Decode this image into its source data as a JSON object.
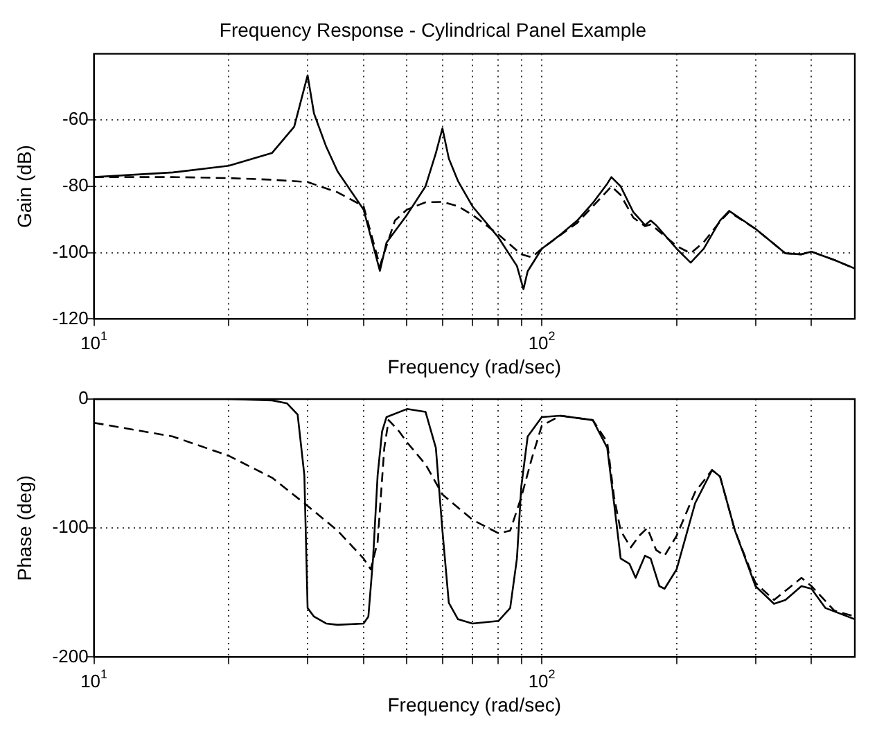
{
  "chart_data": [
    {
      "type": "line",
      "title": "Frequency Response - Cylindrical Panel Example",
      "xlabel": "Frequency (rad/sec)",
      "ylabel": "Gain (dB)",
      "log": "x",
      "grid": true,
      "legend": false,
      "marker": "none",
      "xlim": [
        10,
        500
      ],
      "xticks": [
        {
          "value": 10,
          "label": "10$^{1}$"
        },
        {
          "value": 20,
          "label": null
        },
        {
          "value": 30,
          "label": null
        },
        {
          "value": 40,
          "label": null
        },
        {
          "value": 50,
          "label": null
        },
        {
          "value": 60,
          "label": null
        },
        {
          "value": 70,
          "label": null
        },
        {
          "value": 80,
          "label": null
        },
        {
          "value": 90,
          "label": null
        },
        {
          "value": 100,
          "label": "10$^{2}$"
        },
        {
          "value": 200,
          "label": null
        },
        {
          "value": 300,
          "label": null
        },
        {
          "value": 400,
          "label": null
        }
      ],
      "ylim": [
        -120,
        -40
      ],
      "yticks": [
        -120,
        -100,
        -80,
        -60
      ],
      "series": [
        {
          "color": "#000000",
          "line_style": "solid",
          "x": [
            10,
            15,
            20,
            25,
            28,
            30,
            31,
            33,
            35,
            40,
            43.5,
            45,
            50,
            55,
            58,
            60,
            62,
            65,
            70,
            80,
            88,
            91,
            93,
            100,
            110,
            120,
            130,
            140,
            143,
            150,
            160,
            170,
            175,
            180,
            200,
            215,
            230,
            250,
            262,
            300,
            350,
            380,
            400,
            450,
            500
          ],
          "values": [
            -77.2,
            -75.8,
            -73.8,
            -69.9,
            -62,
            -46.5,
            -58,
            -68,
            -75.5,
            -87,
            -105.5,
            -97,
            -88.6,
            -80,
            -70,
            -62.5,
            -71.6,
            -78.4,
            -86,
            -95.4,
            -104,
            -111,
            -105.6,
            -98.8,
            -94.6,
            -90.3,
            -85,
            -79.2,
            -77.2,
            -80,
            -87.7,
            -91.7,
            -90.3,
            -91.7,
            -98.8,
            -103,
            -98.8,
            -90.3,
            -87.4,
            -92.8,
            -100.2,
            -100.5,
            -99.7,
            -102.2,
            -104.8
          ]
        },
        {
          "color": "#000000",
          "line_style": "dashed",
          "x": [
            10,
            15,
            20,
            25,
            30,
            35,
            40,
            43.5,
            47,
            50,
            55,
            60,
            65,
            70,
            80,
            90,
            95,
            100,
            120,
            140,
            143,
            150,
            160,
            170,
            175,
            180,
            200,
            215,
            230,
            250,
            262,
            300,
            350,
            380,
            400,
            450,
            500
          ],
          "values": [
            -77.2,
            -77.2,
            -77.5,
            -78,
            -78.7,
            -81.8,
            -86,
            -104,
            -90.3,
            -87,
            -84.8,
            -84.7,
            -86,
            -88.6,
            -94.5,
            -100.5,
            -101.4,
            -98.8,
            -91,
            -81.4,
            -80,
            -82.6,
            -89.4,
            -92,
            -91.5,
            -92.8,
            -98,
            -100.2,
            -96.8,
            -90.6,
            -87.7,
            -92.8,
            -100.2,
            -100.5,
            -99.7,
            -102.2,
            -104.8
          ]
        }
      ]
    },
    {
      "type": "line",
      "xlabel": "Frequency (rad/sec)",
      "ylabel": "Phase (deg)",
      "log": "x",
      "grid": true,
      "legend": false,
      "marker": "none",
      "xlim": [
        10,
        500
      ],
      "xticks": [
        {
          "value": 10,
          "label": "10$^{1}$"
        },
        {
          "value": 20,
          "label": null
        },
        {
          "value": 30,
          "label": null
        },
        {
          "value": 40,
          "label": null
        },
        {
          "value": 50,
          "label": null
        },
        {
          "value": 60,
          "label": null
        },
        {
          "value": 70,
          "label": null
        },
        {
          "value": 80,
          "label": null
        },
        {
          "value": 90,
          "label": null
        },
        {
          "value": 100,
          "label": "10$^{2}$"
        },
        {
          "value": 200,
          "label": null
        },
        {
          "value": 300,
          "label": null
        },
        {
          "value": 400,
          "label": null
        }
      ],
      "ylim": [
        -200,
        0
      ],
      "yticks": [
        -200,
        -100,
        0
      ],
      "series": [
        {
          "color": "#000000",
          "line_style": "solid",
          "x": [
            10,
            20,
            25,
            27,
            28.5,
            29.5,
            30,
            31,
            33,
            35,
            40,
            41,
            42,
            43,
            44,
            45,
            50,
            55,
            58,
            60,
            62,
            65,
            70,
            80,
            85,
            88,
            90,
            93,
            100,
            110,
            130,
            140,
            145,
            150,
            157,
            162,
            170,
            175,
            183,
            188,
            200,
            220,
            240,
            250,
            270,
            300,
            330,
            350,
            380,
            400,
            430,
            500
          ],
          "values": [
            0,
            0,
            -1,
            -3.4,
            -12,
            -59,
            -162,
            -168.6,
            -174,
            -175,
            -174,
            -168.6,
            -123.6,
            -59,
            -25,
            -14,
            -7.7,
            -9.9,
            -37.8,
            -102,
            -158,
            -170.7,
            -174,
            -172,
            -162,
            -123.6,
            -67.8,
            -29,
            -14,
            -12.9,
            -16.3,
            -37.8,
            -80.7,
            -123.6,
            -127.8,
            -138.6,
            -121.4,
            -123.6,
            -145,
            -147,
            -132,
            -80.7,
            -55,
            -60,
            -102,
            -145,
            -158.7,
            -155.7,
            -145,
            -147,
            -162,
            -170.7
          ]
        },
        {
          "color": "#000000",
          "line_style": "dashed",
          "x": [
            10,
            15,
            20,
            25,
            30,
            35,
            40,
            41.5,
            43,
            44.5,
            45.5,
            48,
            50,
            55,
            60,
            70,
            80,
            85,
            90,
            95,
            100,
            110,
            130,
            140,
            145,
            150,
            158,
            165,
            172,
            180,
            188,
            200,
            220,
            240,
            250,
            270,
            300,
            330,
            380,
            400,
            450,
            500
          ],
          "values": [
            -18.4,
            -29,
            -44,
            -61,
            -82.8,
            -102,
            -123.6,
            -132,
            -110.7,
            -37.8,
            -16.3,
            -25,
            -33.5,
            -50.6,
            -74,
            -93.5,
            -104,
            -102,
            -76,
            -46,
            -20.6,
            -12.9,
            -16.3,
            -33.5,
            -76,
            -102,
            -115,
            -106,
            -100,
            -117,
            -121.4,
            -106,
            -72,
            -55,
            -60,
            -102,
            -142.6,
            -155.7,
            -138.6,
            -145,
            -164,
            -168.6
          ]
        }
      ]
    }
  ]
}
